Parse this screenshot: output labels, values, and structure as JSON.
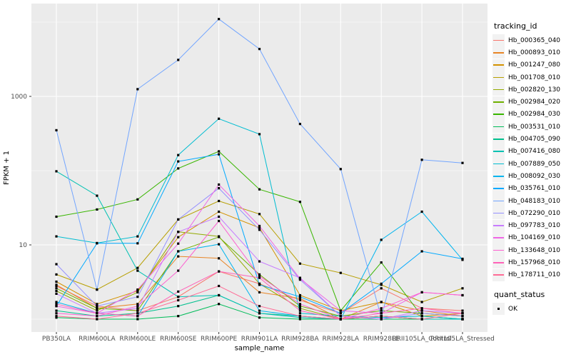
{
  "figure": {
    "background": "#FFFFFF",
    "panel_background": "#EBEBEB",
    "gridline_color": "#FFFFFF",
    "axis_text_color": "#4D4D4D",
    "tick_mark_color": "#333333"
  },
  "legend": {
    "tracking": {
      "title": "tracking_id"
    },
    "quant": {
      "title": "quant_status",
      "items": [
        {
          "label": "OK",
          "marker": "black-square-point"
        }
      ]
    }
  },
  "chart_data": {
    "type": "line",
    "title": "",
    "xlabel": "sample_name",
    "ylabel": "FPKM + 1",
    "y_scale": "log10",
    "ylim": [
      0.67,
      17800
    ],
    "y_ticks_labeled": [
      10,
      1000
    ],
    "y_tick_labels": [
      "10",
      "1000"
    ],
    "y_minor_gridlines": [
      1,
      100,
      10000
    ],
    "grid": "on",
    "legend_position": "right",
    "point_marker": {
      "shape": "square",
      "color": "#000000",
      "size": 3.2
    },
    "categories": [
      "PB350LA",
      "RRIM600LA",
      "RRIM600LE",
      "RRIM600SE",
      "RRIM600PE",
      "RRIM901LA",
      "RRIM928BA",
      "RRIM928LA",
      "RRIM928LE",
      "RRII105LA_Control",
      "RRII105LA_Stressed"
    ],
    "series": [
      {
        "name": "Hb_000365_040",
        "color": "#F8766D",
        "values": [
          2.8,
          1.5,
          1.3,
          2.0,
          4.4,
          3.0,
          1.8,
          1.2,
          2.6,
          1.4,
          1.3
        ]
      },
      {
        "name": "Hb_000893_010",
        "color": "#E88526",
        "values": [
          2.9,
          1.4,
          1.6,
          7.0,
          6.6,
          2.3,
          1.9,
          1.0,
          1.7,
          1.3,
          1.1
        ]
      },
      {
        "name": "Hb_001247_080",
        "color": "#D39200",
        "values": [
          3.2,
          1.6,
          2.4,
          12.7,
          28,
          17,
          2.1,
          1.3,
          1.7,
          1.1,
          1.2
        ]
      },
      {
        "name": "Hb_001708_010",
        "color": "#B79F00",
        "values": [
          4.0,
          2.5,
          4.9,
          22,
          39,
          26,
          5.6,
          4.2,
          2.9,
          1.7,
          2.6
        ]
      },
      {
        "name": "Hb_002820_130",
        "color": "#93AA00",
        "values": [
          2.4,
          1.3,
          2.3,
          15,
          13,
          3.0,
          1.4,
          1.0,
          1.1,
          1.0,
          1.0
        ]
      },
      {
        "name": "Hb_002984_020",
        "color": "#6FB000",
        "values": [
          2.6,
          1.4,
          1.3,
          8.2,
          12.8,
          4.0,
          1.5,
          1.1,
          1.3,
          1.2,
          1.1
        ]
      },
      {
        "name": "Hb_002984_030",
        "color": "#39B600",
        "values": [
          24,
          30,
          41,
          107,
          182,
          56,
          38,
          1.3,
          5.8,
          1.1,
          1.0
        ]
      },
      {
        "name": "Hb_003531_010",
        "color": "#00BC59",
        "values": [
          1.05,
          1.0,
          1.0,
          1.1,
          1.6,
          1.05,
          1.0,
          1.0,
          1.0,
          1.0,
          1.0
        ]
      },
      {
        "name": "Hb_004705_090",
        "color": "#00C08E",
        "values": [
          1.3,
          1.1,
          1.2,
          1.5,
          2.1,
          1.2,
          1.1,
          1.0,
          1.1,
          1.0,
          1.0
        ]
      },
      {
        "name": "Hb_007416_080",
        "color": "#00C1B2",
        "values": [
          98,
          46,
          4.5,
          2.0,
          2.1,
          1.2,
          1.05,
          1.0,
          1.1,
          1.0,
          1.0
        ]
      },
      {
        "name": "Hb_007889_050",
        "color": "#00BDD1",
        "values": [
          13,
          10.6,
          13,
          162,
          500,
          310,
          1.2,
          1.1,
          1.05,
          1.1,
          1.0
        ]
      },
      {
        "name": "Hb_008092_030",
        "color": "#00B5EE",
        "values": [
          1.7,
          1.2,
          1.1,
          8.2,
          10.2,
          1.3,
          1.1,
          1.0,
          11.7,
          28,
          6.3
        ]
      },
      {
        "name": "Hb_035761_010",
        "color": "#00A9FF",
        "values": [
          1.5,
          10.5,
          10.5,
          133,
          166,
          2.9,
          2.0,
          1.2,
          3.0,
          8.2,
          6.5
        ]
      },
      {
        "name": "Hb_048183_010",
        "color": "#72A5FF",
        "values": [
          350,
          2.5,
          1250,
          3100,
          11000,
          4350,
          425,
          105,
          1.05,
          140,
          127
        ]
      },
      {
        "name": "Hb_072290_010",
        "color": "#9590FF",
        "values": [
          5.5,
          1.5,
          2.0,
          22,
          58,
          16,
          3.4,
          1.1,
          1.0,
          1.2,
          1.1
        ]
      },
      {
        "name": "Hb_097783_010",
        "color": "#C77CFF",
        "values": [
          2.2,
          1.2,
          1.4,
          15,
          24,
          6.0,
          3.6,
          1.1,
          1.0,
          1.3,
          1.2
        ]
      },
      {
        "name": "Hb_104169_010",
        "color": "#EF67E5",
        "values": [
          1.5,
          1.2,
          2.5,
          10.4,
          65,
          18,
          3.5,
          1.3,
          1.2,
          2.3,
          2.1
        ]
      },
      {
        "name": "Hb_133648_010",
        "color": "#FD61D1",
        "values": [
          1.2,
          1.1,
          1.5,
          4.5,
          21,
          3.8,
          1.6,
          1.0,
          1.4,
          2.3,
          2.1
        ]
      },
      {
        "name": "Hb_157968_010",
        "color": "#FF62B8",
        "values": [
          1.6,
          1.2,
          1.1,
          2.35,
          4.4,
          3.6,
          1.3,
          1.0,
          1.2,
          1.4,
          1.2
        ]
      },
      {
        "name": "Hb_178711_010",
        "color": "#FF6B96",
        "values": [
          1.1,
          1.0,
          1.2,
          1.8,
          2.8,
          1.5,
          1.1,
          1.0,
          1.1,
          1.0,
          1.2
        ]
      }
    ]
  }
}
